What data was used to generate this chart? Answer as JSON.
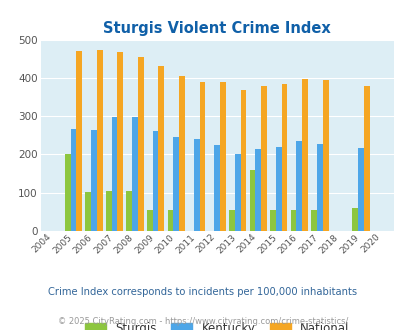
{
  "title": "Sturgis Violent Crime Index",
  "years": [
    2004,
    2005,
    2006,
    2007,
    2008,
    2009,
    2010,
    2011,
    2012,
    2013,
    2014,
    2015,
    2016,
    2017,
    2018,
    2019,
    2020
  ],
  "sturgis": [
    0,
    200,
    102,
    105,
    105,
    55,
    55,
    0,
    0,
    55,
    160,
    55,
    55,
    55,
    0,
    60,
    0
  ],
  "kentucky": [
    0,
    267,
    265,
    298,
    298,
    260,
    245,
    240,
    225,
    202,
    215,
    220,
    235,
    228,
    0,
    218,
    0
  ],
  "national": [
    0,
    470,
    473,
    467,
    455,
    432,
    405,
    388,
    388,
    368,
    378,
    383,
    398,
    394,
    0,
    380,
    0
  ],
  "sturgis_color": "#8dc63f",
  "kentucky_color": "#4da6e8",
  "national_color": "#f5a623",
  "plot_bg": "#ddeef5",
  "title_color": "#1060a8",
  "ylim": [
    0,
    500
  ],
  "yticks": [
    0,
    100,
    200,
    300,
    400,
    500
  ],
  "subtitle": "Crime Index corresponds to incidents per 100,000 inhabitants",
  "footer": "© 2025 CityRating.com - https://www.cityrating.com/crime-statistics/",
  "subtitle_color": "#336699",
  "footer_color": "#999999",
  "legend_labels": [
    "Sturgis",
    "Kentucky",
    "National"
  ]
}
